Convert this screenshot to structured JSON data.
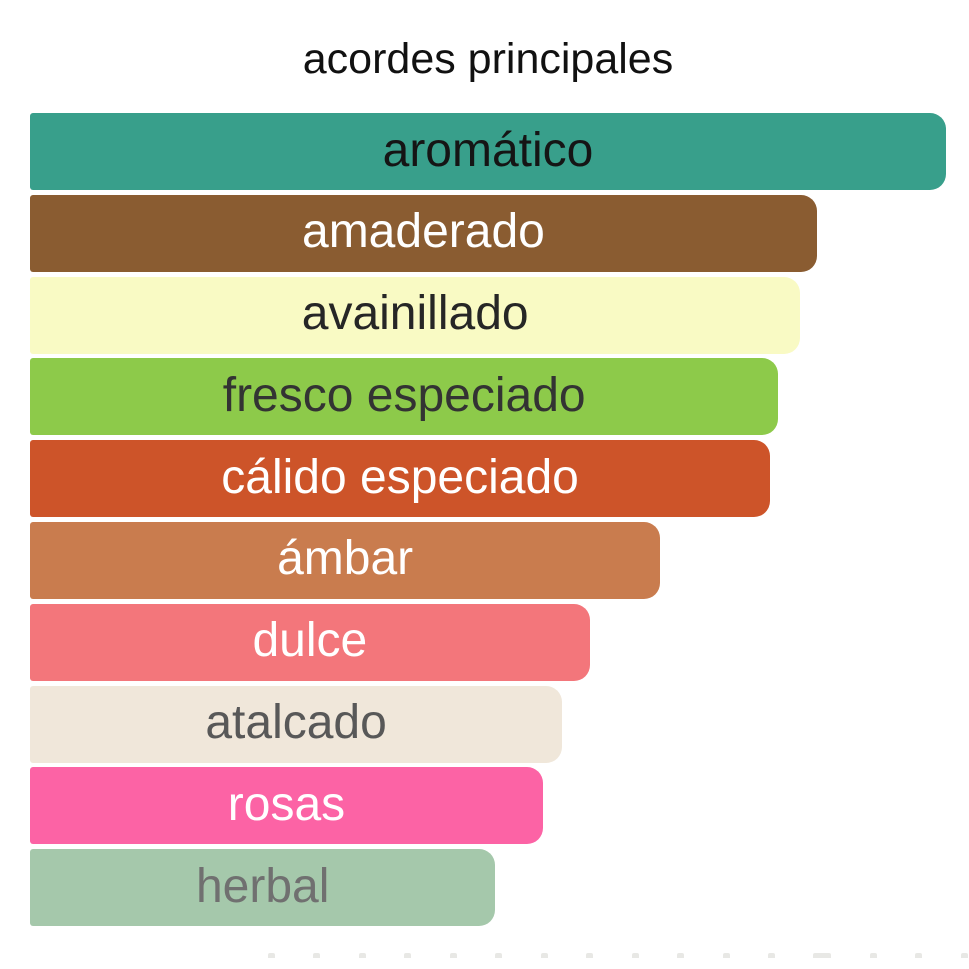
{
  "chart_data": {
    "type": "bar",
    "orientation": "horizontal",
    "title": "acordes principales",
    "categories": [
      "aromático",
      "amaderado",
      "avainillado",
      "fresco especiado",
      "cálido especiado",
      "ámbar",
      "dulce",
      "atalcado",
      "rosas",
      "herbal"
    ],
    "values": [
      100,
      85.9,
      84.1,
      81.7,
      80.8,
      68.8,
      61.1,
      58.1,
      56.0,
      50.8
    ],
    "xlim": [
      0,
      100
    ],
    "grid": false,
    "legend": false,
    "bar_colors": [
      "#389f8b",
      "#8a5c31",
      "#f9fac4",
      "#8dca4a",
      "#cd5429",
      "#c97c4e",
      "#f3767b",
      "#f0e7da",
      "#fc63a5",
      "#a5c8ab"
    ],
    "label_colors": [
      "#151515",
      "#ffffff",
      "#262626",
      "#333333",
      "#ffffff",
      "#ffffff",
      "#ffffff",
      "#585858",
      "#ffffff",
      "#707070"
    ],
    "background": "#ffffff"
  }
}
